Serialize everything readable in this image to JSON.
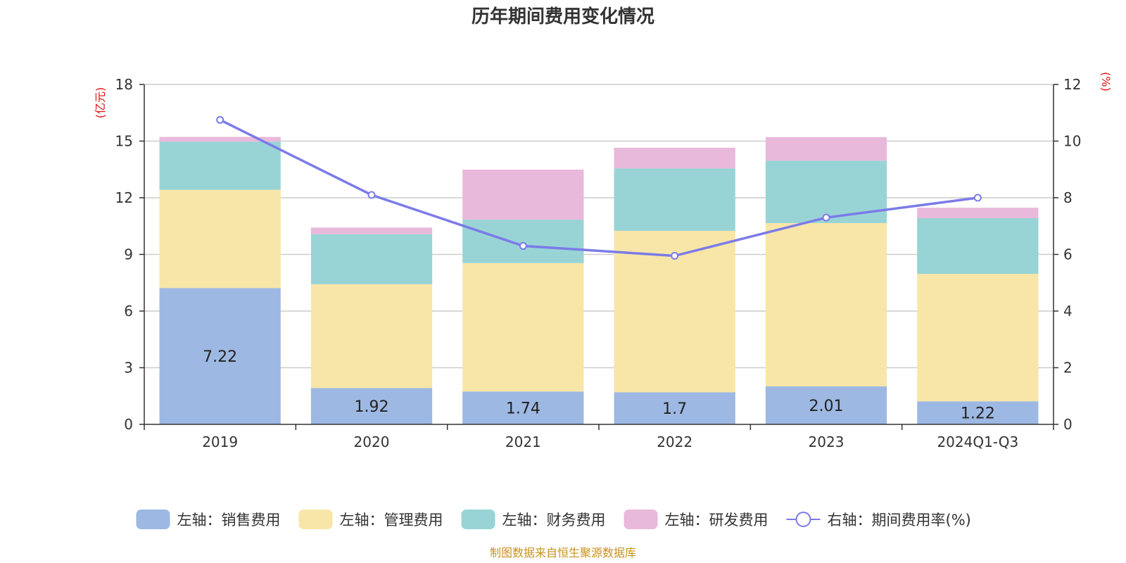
{
  "chart_data": {
    "type": "bar",
    "stacked": true,
    "title": "历年期间费用变化情况",
    "categories": [
      "2019",
      "2020",
      "2021",
      "2022",
      "2023",
      "2024Q1-Q3"
    ],
    "left_axis": {
      "unit": "(亿元)",
      "ylim": [
        0,
        18
      ],
      "ticks": [
        "0",
        "3",
        "6",
        "9",
        "12",
        "15",
        "18"
      ]
    },
    "right_axis": {
      "unit": "(%)",
      "ylim": [
        0,
        12
      ],
      "ticks": [
        "0",
        "2",
        "4",
        "6",
        "8",
        "10",
        "12"
      ]
    },
    "series": [
      {
        "name": "左轴：销售费用",
        "axis": "left",
        "color": "#9db8e2",
        "values": [
          7.22,
          1.92,
          1.74,
          1.7,
          2.01,
          1.22
        ],
        "labels": [
          "7.22",
          "1.92",
          "1.74",
          "1.7",
          "2.01",
          "1.22"
        ]
      },
      {
        "name": "左轴：管理费用",
        "axis": "left",
        "color": "#f8e6a8",
        "values": [
          5.2,
          5.5,
          6.8,
          8.55,
          8.65,
          6.75
        ]
      },
      {
        "name": "左轴：财务费用",
        "axis": "left",
        "color": "#98d4d5",
        "values": [
          2.55,
          2.65,
          2.3,
          3.3,
          3.3,
          2.95
        ]
      },
      {
        "name": "左轴：研发费用",
        "axis": "left",
        "color": "#e8b9da",
        "values": [
          0.25,
          0.35,
          2.65,
          1.1,
          1.25,
          0.55
        ]
      },
      {
        "name": "右轴：期间费用率(%)",
        "axis": "right",
        "type": "line",
        "color": "#7b7be8",
        "values": [
          10.75,
          8.1,
          6.3,
          5.95,
          7.3,
          8.0
        ]
      }
    ],
    "legend_position": "bottom",
    "grid": true
  },
  "footer": {
    "source": "制图数据来自恒生聚源数据库"
  }
}
